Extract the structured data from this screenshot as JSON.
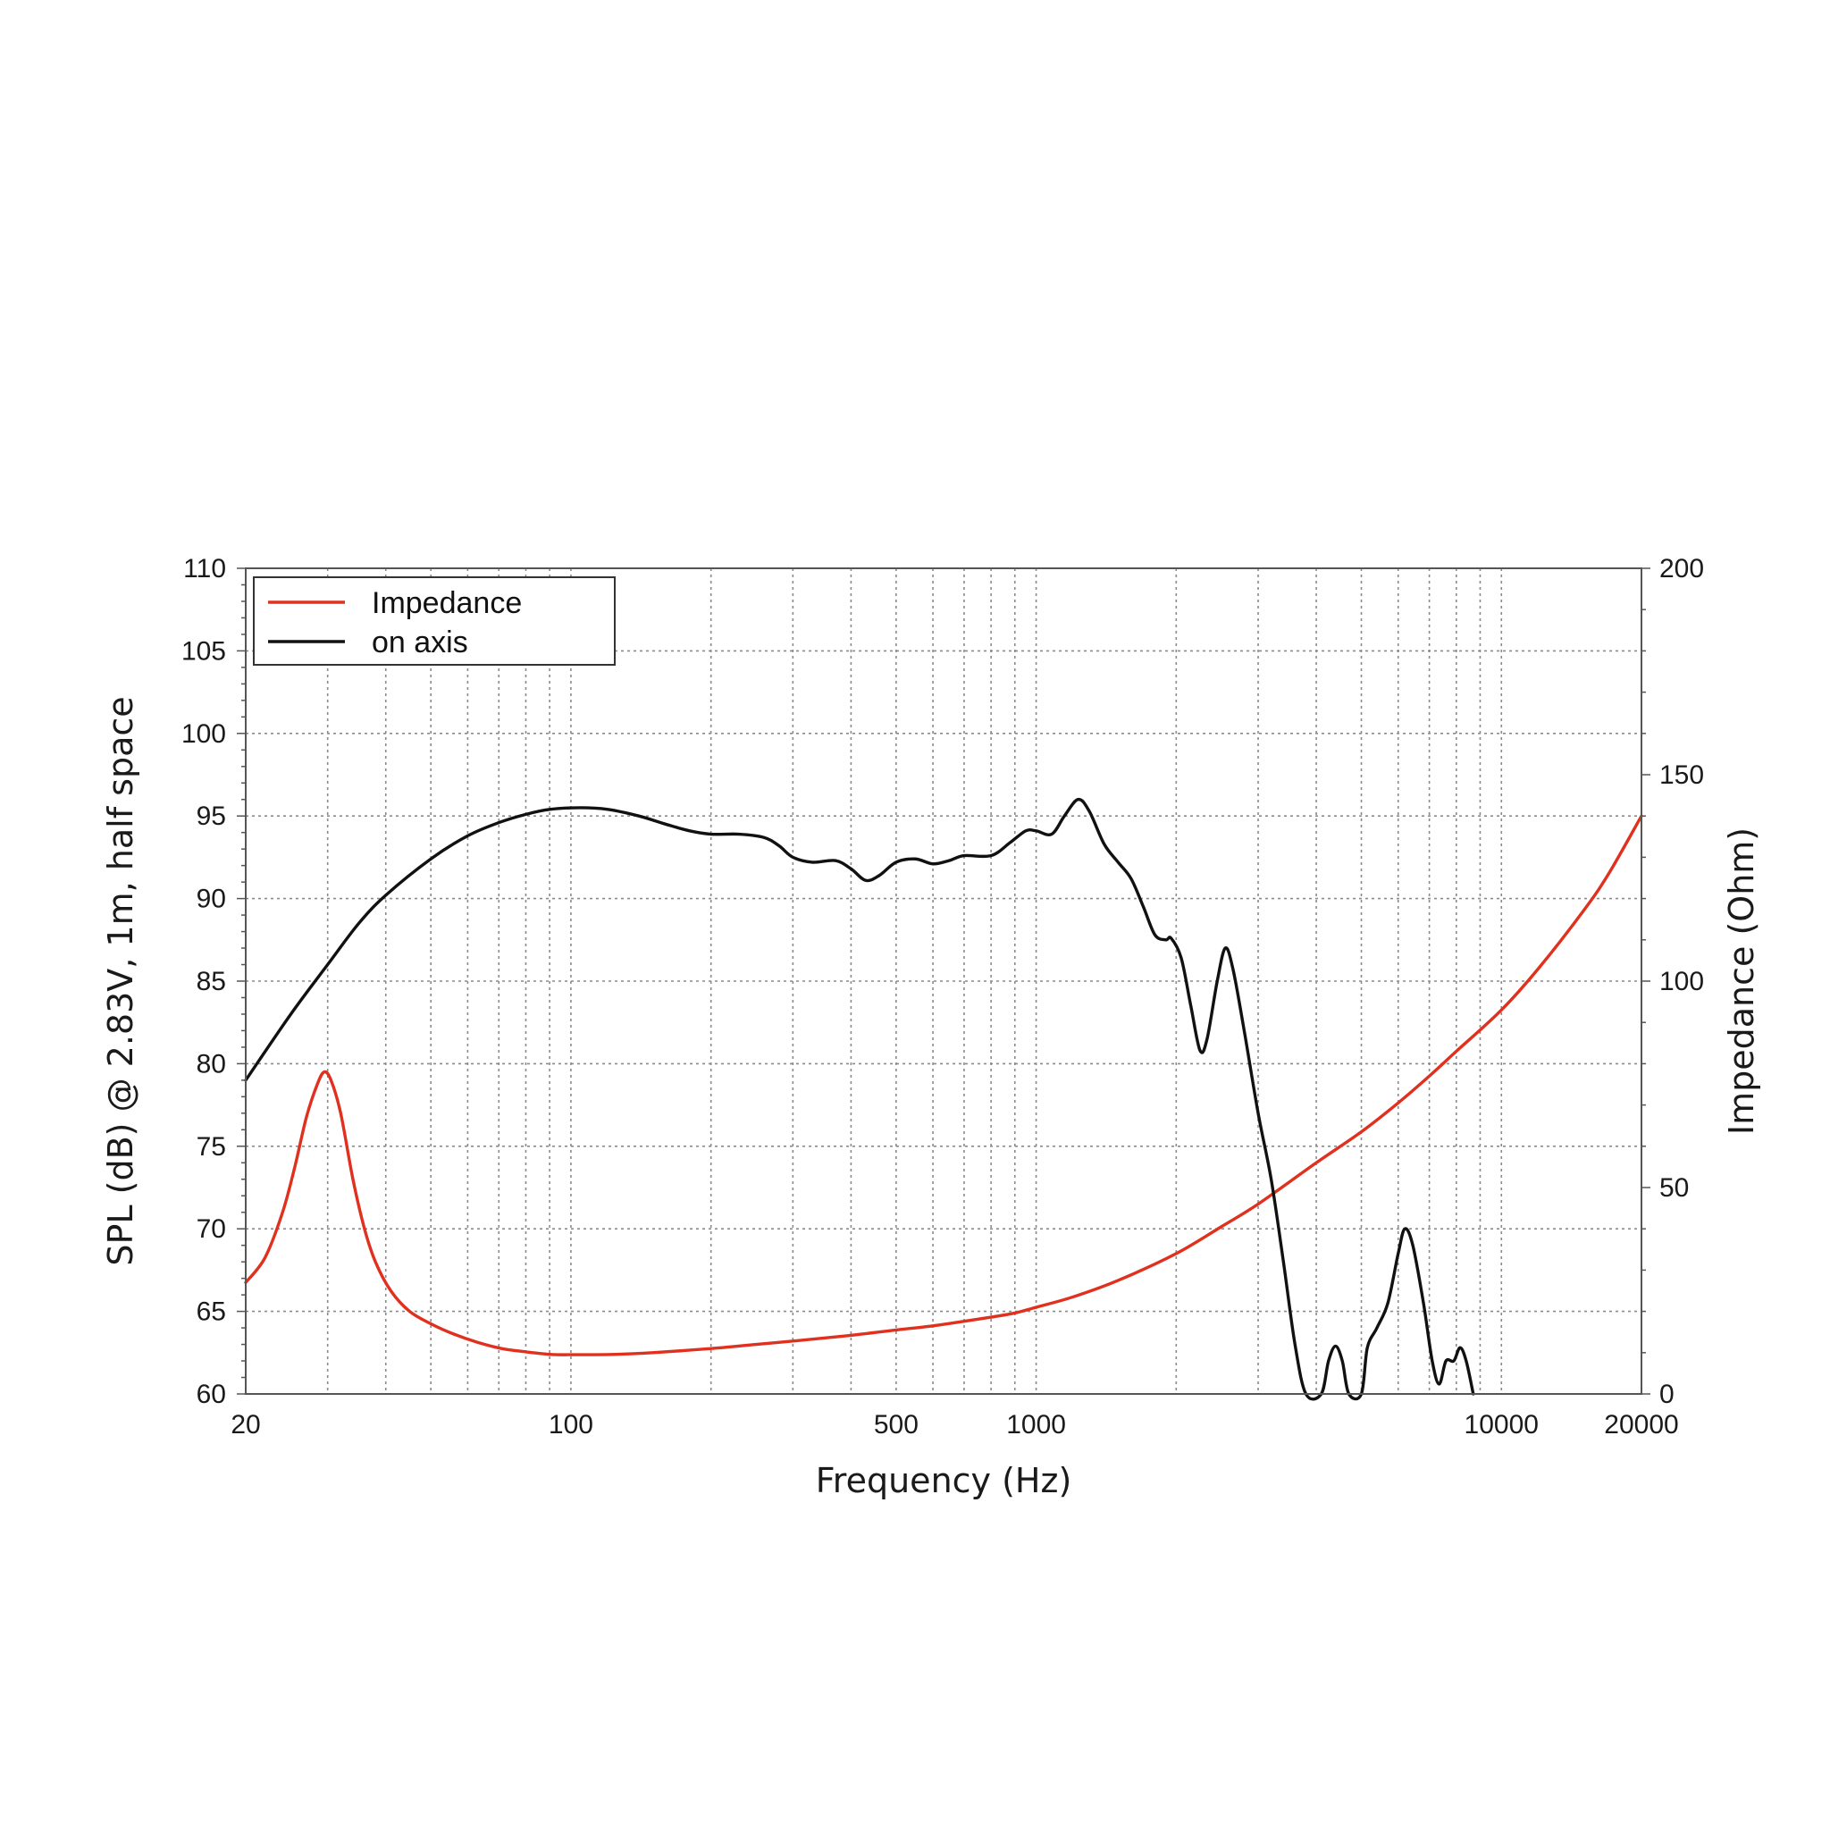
{
  "chart_data": {
    "type": "line",
    "xlabel": "Frequency (Hz)",
    "ylabel": "SPL (dB) @ 2.83V, 1m, half space",
    "y2label": "Impedance (Ohm)",
    "x_scale": "log",
    "xlim": [
      20,
      20000
    ],
    "ylim": [
      60,
      110
    ],
    "y2lim": [
      0,
      200
    ],
    "x_ticks": [
      20,
      100,
      500,
      1000,
      10000,
      20000
    ],
    "x_tick_labels": [
      "20",
      "100",
      "500",
      "1000",
      "10000",
      "20000"
    ],
    "y_ticks": [
      60,
      65,
      70,
      75,
      80,
      85,
      90,
      95,
      100,
      105,
      110
    ],
    "y_tick_labels": [
      "60",
      "65",
      "70",
      "75",
      "80",
      "85",
      "90",
      "95",
      "100",
      "105",
      "110"
    ],
    "y2_ticks": [
      0,
      50,
      100,
      150,
      200
    ],
    "y2_tick_labels": [
      "0",
      "50",
      "100",
      "150",
      "200"
    ],
    "grid": true,
    "legend_position": "top-left",
    "series": [
      {
        "name": "Impedance",
        "color": "#e0301e",
        "axis": "right",
        "points": [
          [
            20,
            27
          ],
          [
            22,
            33
          ],
          [
            24,
            44
          ],
          [
            25.5,
            55
          ],
          [
            27,
            67
          ],
          [
            28.5,
            75
          ],
          [
            29.5,
            78
          ],
          [
            30.5,
            76
          ],
          [
            32,
            68
          ],
          [
            34,
            52
          ],
          [
            36,
            40
          ],
          [
            38,
            32
          ],
          [
            41,
            25
          ],
          [
            45,
            20
          ],
          [
            50,
            17
          ],
          [
            56,
            14.5
          ],
          [
            63,
            12.5
          ],
          [
            71,
            11
          ],
          [
            80,
            10.2
          ],
          [
            90,
            9.6
          ],
          [
            100,
            9.5
          ],
          [
            125,
            9.6
          ],
          [
            150,
            10
          ],
          [
            200,
            11
          ],
          [
            250,
            12
          ],
          [
            300,
            12.8
          ],
          [
            400,
            14.2
          ],
          [
            500,
            15.5
          ],
          [
            600,
            16.5
          ],
          [
            700,
            17.6
          ],
          [
            800,
            18.6
          ],
          [
            900,
            19.6
          ],
          [
            1000,
            21
          ],
          [
            1200,
            23.5
          ],
          [
            1500,
            27.5
          ],
          [
            2000,
            34
          ],
          [
            2500,
            40.5
          ],
          [
            3000,
            46
          ],
          [
            4000,
            56
          ],
          [
            5000,
            63.5
          ],
          [
            6000,
            70.5
          ],
          [
            7000,
            77
          ],
          [
            8000,
            83
          ],
          [
            10000,
            93
          ],
          [
            12000,
            103
          ],
          [
            15000,
            117
          ],
          [
            17000,
            126
          ],
          [
            20000,
            140
          ]
        ]
      },
      {
        "name": "on axis",
        "color": "#111111",
        "axis": "left",
        "points": [
          [
            20,
            79
          ],
          [
            25,
            83
          ],
          [
            30,
            86
          ],
          [
            35,
            88.5
          ],
          [
            40,
            90.2
          ],
          [
            50,
            92.4
          ],
          [
            60,
            93.8
          ],
          [
            70,
            94.6
          ],
          [
            80,
            95.1
          ],
          [
            90,
            95.4
          ],
          [
            105,
            95.5
          ],
          [
            120,
            95.4
          ],
          [
            140,
            95
          ],
          [
            160,
            94.5
          ],
          [
            180,
            94.1
          ],
          [
            200,
            93.9
          ],
          [
            230,
            93.9
          ],
          [
            260,
            93.7
          ],
          [
            280,
            93.2
          ],
          [
            300,
            92.5
          ],
          [
            330,
            92.2
          ],
          [
            370,
            92.3
          ],
          [
            400,
            91.8
          ],
          [
            430,
            91.1
          ],
          [
            460,
            91.4
          ],
          [
            500,
            92.2
          ],
          [
            550,
            92.4
          ],
          [
            600,
            92.1
          ],
          [
            650,
            92.3
          ],
          [
            700,
            92.6
          ],
          [
            800,
            92.6
          ],
          [
            880,
            93.4
          ],
          [
            950,
            94.1
          ],
          [
            1000,
            94.1
          ],
          [
            1080,
            93.9
          ],
          [
            1150,
            95
          ],
          [
            1230,
            96
          ],
          [
            1300,
            95.3
          ],
          [
            1400,
            93.3
          ],
          [
            1500,
            92.2
          ],
          [
            1600,
            91.2
          ],
          [
            1700,
            89.5
          ],
          [
            1800,
            87.8
          ],
          [
            1900,
            87.5
          ],
          [
            1950,
            87.6
          ],
          [
            2050,
            86.4
          ],
          [
            2150,
            83.5
          ],
          [
            2250,
            80.8
          ],
          [
            2330,
            81.5
          ],
          [
            2450,
            85
          ],
          [
            2550,
            87
          ],
          [
            2650,
            85.7
          ],
          [
            2800,
            82
          ],
          [
            3000,
            77
          ],
          [
            3200,
            73
          ],
          [
            3400,
            68
          ],
          [
            3600,
            63
          ],
          [
            3800,
            60
          ],
          [
            4100,
            60
          ],
          [
            4250,
            62
          ],
          [
            4400,
            62.9
          ],
          [
            4550,
            62
          ],
          [
            4700,
            60
          ],
          [
            5000,
            60
          ],
          [
            5150,
            62.8
          ],
          [
            5400,
            64
          ],
          [
            5700,
            65.5
          ],
          [
            6000,
            68.5
          ],
          [
            6200,
            70
          ],
          [
            6450,
            69
          ],
          [
            6800,
            65.5
          ],
          [
            7100,
            62
          ],
          [
            7350,
            60.6
          ],
          [
            7600,
            62
          ],
          [
            7900,
            62
          ],
          [
            8150,
            62.8
          ],
          [
            8400,
            62
          ],
          [
            8700,
            60
          ]
        ]
      }
    ]
  }
}
